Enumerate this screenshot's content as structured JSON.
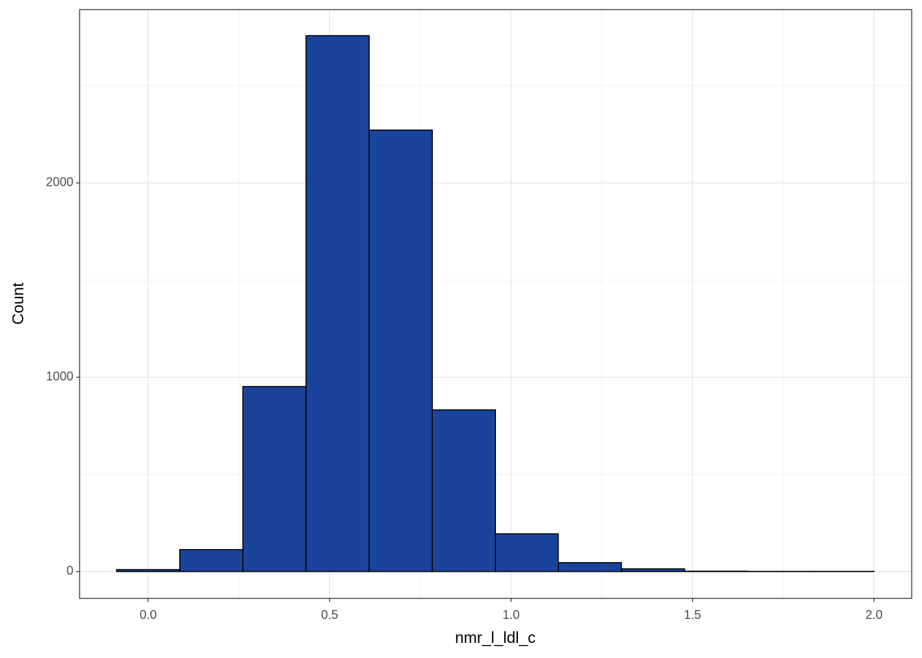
{
  "chart_data": {
    "type": "histogram",
    "x_label": "nmr_l_ldl_c",
    "y_label": "Count",
    "bins": [
      -0.087,
      0.087,
      0.261,
      0.435,
      0.609,
      0.783,
      0.957,
      1.13,
      1.304,
      1.478,
      1.652,
      1.826,
      2.0
    ],
    "values": [
      10,
      113,
      952,
      2758,
      2272,
      832,
      194,
      46,
      14,
      2,
      1,
      1
    ],
    "color": "#1a4499",
    "edgecolor": "#000000",
    "xlim": [
      -0.189,
      2.104
    ],
    "ylim": [
      -138,
      2892
    ],
    "xticks": [
      {
        "value": 0,
        "label": "0.0"
      },
      0.5,
      {
        "value": 1,
        "label": "1.0"
      },
      1.5,
      {
        "value": 2,
        "label": "2.0"
      }
    ],
    "yticks": [
      0,
      1000,
      2000
    ],
    "xminor": [
      0.25,
      0.75,
      1.25,
      1.75
    ],
    "yminor": [
      500,
      1500,
      2500
    ],
    "grid": true
  }
}
